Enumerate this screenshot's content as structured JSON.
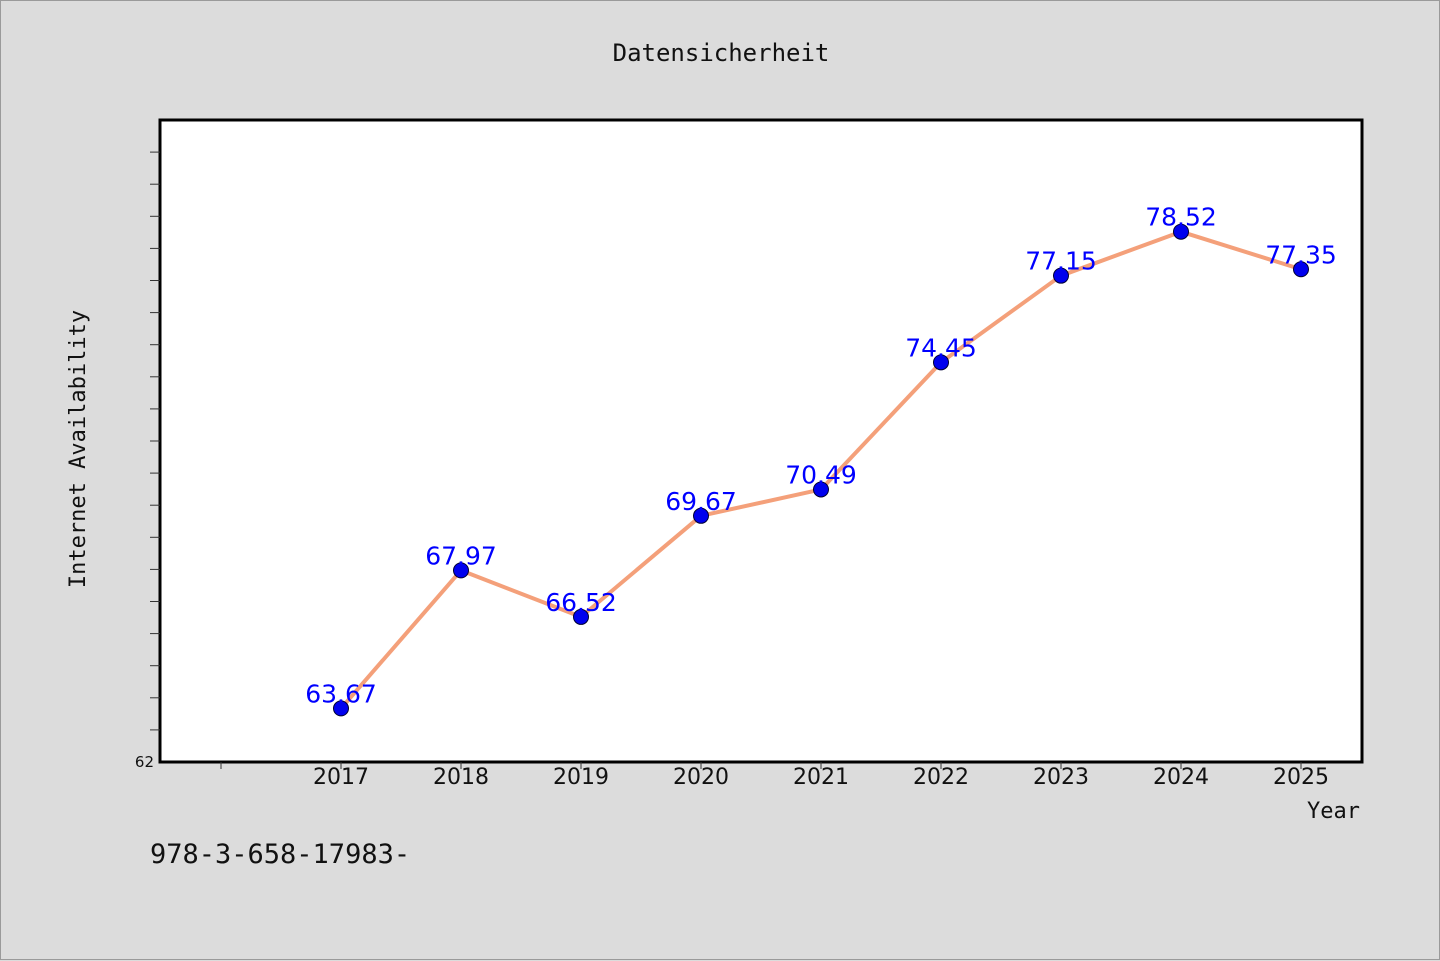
{
  "chart_data": {
    "type": "line",
    "title": "Datensicherheit",
    "xlabel": "Year",
    "ylabel": "Internet Availability",
    "x": [
      "2017",
      "2018",
      "2019",
      "2020",
      "2021",
      "2022",
      "2023",
      "2024",
      "2025"
    ],
    "values": [
      63.67,
      67.97,
      66.52,
      69.67,
      70.49,
      74.45,
      77.15,
      78.52,
      77.35
    ],
    "data_labels": [
      "63.67",
      "67.97",
      "66.52",
      "69.67",
      "70.49",
      "74.45",
      "77.15",
      "78.52",
      "77.35"
    ],
    "ylim": [
      62,
      82
    ],
    "y_tick_labels": [
      "62"
    ],
    "line_color": "#f4a07a",
    "marker_color": "#0000ee",
    "label_color": "#0000ff",
    "grid": false,
    "legend": "none"
  },
  "footnote": "978-3-658-17983-"
}
